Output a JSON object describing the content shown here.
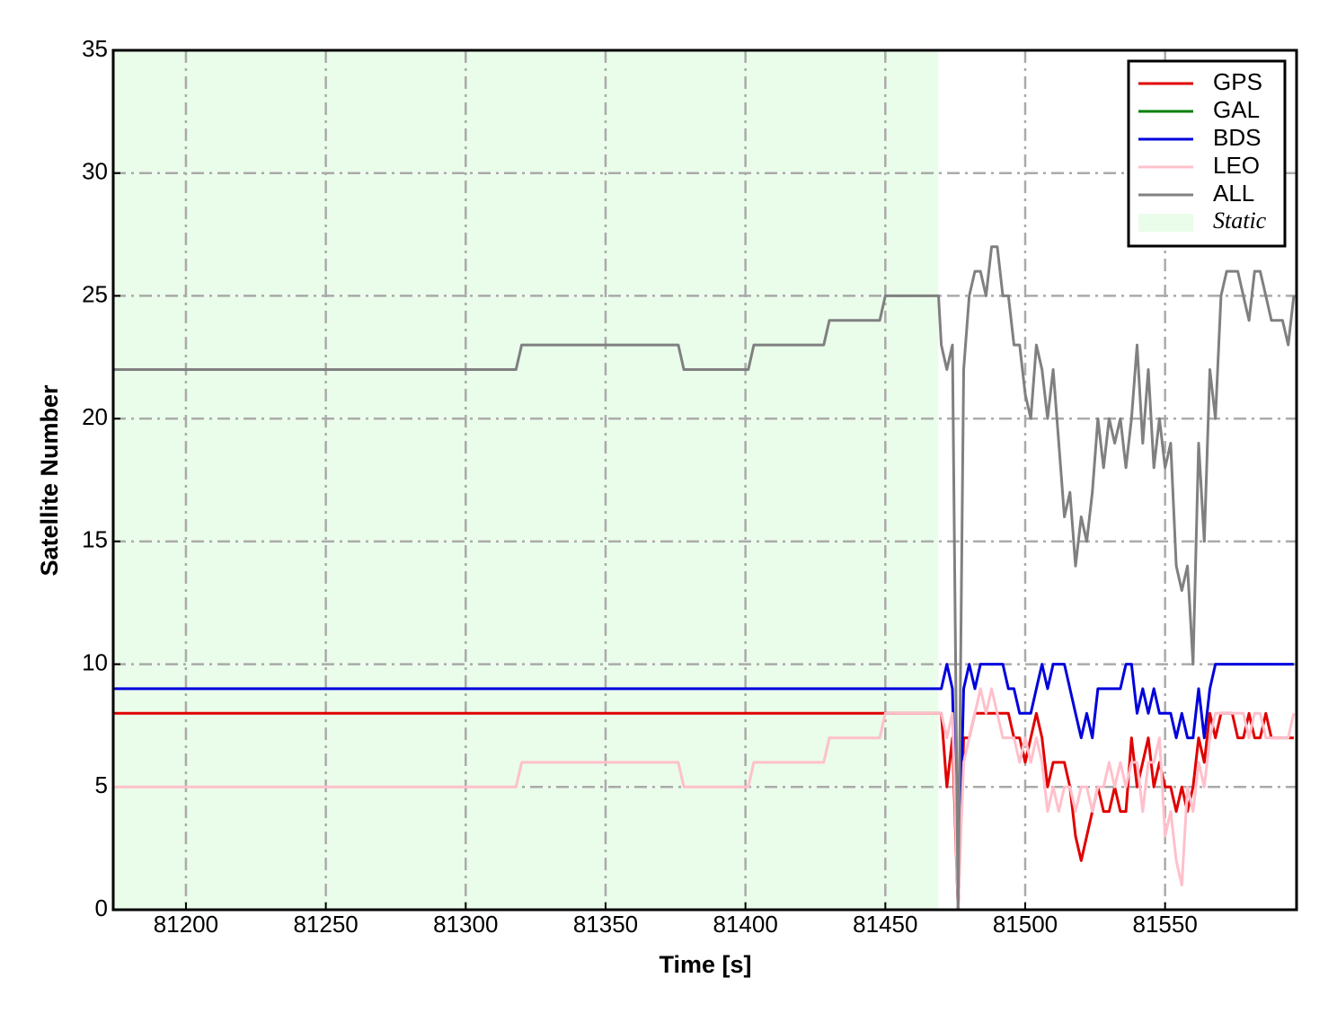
{
  "chart_data": {
    "type": "line",
    "xlabel": "Time [s]",
    "ylabel": "Satellite Number",
    "x": [
      81174,
      81318,
      81320,
      81376,
      81378,
      81401,
      81403,
      81428,
      81430,
      81448,
      81450,
      81469,
      81470,
      81472,
      81474,
      81476,
      81478,
      81480,
      81482,
      81484,
      81486,
      81488,
      81490,
      81492,
      81494,
      81496,
      81498,
      81500,
      81502,
      81504,
      81506,
      81508,
      81510,
      81512,
      81514,
      81516,
      81518,
      81520,
      81522,
      81524,
      81526,
      81528,
      81530,
      81532,
      81534,
      81536,
      81538,
      81540,
      81542,
      81544,
      81546,
      81548,
      81550,
      81552,
      81554,
      81556,
      81558,
      81560,
      81562,
      81564,
      81566,
      81568,
      81570,
      81572,
      81574,
      81576,
      81578,
      81580,
      81582,
      81584,
      81586,
      81588,
      81590,
      81592,
      81594,
      81596
    ],
    "series": [
      {
        "name": "GPS",
        "color": "#e00000",
        "values": [
          8,
          8,
          8,
          8,
          8,
          8,
          8,
          8,
          8,
          8,
          8,
          8,
          8,
          5,
          7,
          0,
          7,
          7,
          8,
          8,
          8,
          8,
          8,
          8,
          8,
          7,
          7,
          6,
          7,
          8,
          7,
          5,
          6,
          6,
          6,
          5,
          3,
          2,
          3,
          4,
          5,
          4,
          4,
          5,
          4,
          4,
          7,
          5,
          6,
          7,
          5,
          6,
          5,
          5,
          4,
          5,
          4,
          5,
          7,
          6,
          8,
          7,
          8,
          8,
          8,
          7,
          7,
          8,
          7,
          7,
          8,
          7,
          7,
          7,
          7,
          7
        ]
      },
      {
        "name": "GAL",
        "color": "#007f00",
        "values": [
          0,
          0,
          0,
          0,
          0,
          0,
          0,
          0,
          0,
          0,
          0,
          0,
          0,
          0,
          0,
          0,
          0,
          0,
          0,
          0,
          0,
          0,
          0,
          0,
          0,
          0,
          0,
          0,
          0,
          0,
          0,
          0,
          0,
          0,
          0,
          0,
          0,
          0,
          0,
          0,
          0,
          0,
          0,
          0,
          0,
          0,
          0,
          0,
          0,
          0,
          0,
          0,
          0,
          0,
          0,
          0,
          0,
          0,
          0,
          0,
          0,
          0,
          0,
          0,
          0,
          0,
          0,
          0,
          0,
          0,
          0,
          0,
          0,
          0,
          0,
          0
        ]
      },
      {
        "name": "BDS",
        "color": "#0000dd",
        "values": [
          9,
          9,
          9,
          9,
          9,
          9,
          9,
          9,
          9,
          9,
          9,
          9,
          9,
          10,
          9,
          0,
          9,
          10,
          9,
          10,
          10,
          10,
          10,
          10,
          9,
          9,
          8,
          8,
          8,
          9,
          10,
          9,
          10,
          10,
          10,
          9,
          8,
          7,
          8,
          7,
          9,
          9,
          9,
          9,
          9,
          10,
          10,
          8,
          9,
          8,
          9,
          8,
          8,
          8,
          7,
          8,
          7,
          7,
          9,
          7,
          9,
          10,
          10,
          10,
          10,
          10,
          10,
          10,
          10,
          10,
          10,
          10,
          10,
          10,
          10,
          10
        ]
      },
      {
        "name": "LEO",
        "color": "#ffc0cb",
        "values": [
          5,
          5,
          6,
          6,
          5,
          5,
          6,
          6,
          7,
          7,
          8,
          8,
          8,
          7,
          8,
          0,
          6,
          7,
          8,
          9,
          8,
          9,
          8,
          7,
          7,
          7,
          6,
          7,
          6,
          7,
          6,
          4,
          5,
          4,
          5,
          5,
          4,
          5,
          5,
          4,
          5,
          5,
          6,
          5,
          6,
          5,
          6,
          6,
          4,
          6,
          6,
          7,
          3,
          4,
          2,
          1,
          5,
          4,
          6,
          5,
          7,
          8,
          8,
          8,
          8,
          8,
          8,
          7,
          8,
          8,
          7,
          7,
          7,
          7,
          7,
          8
        ]
      },
      {
        "name": "ALL",
        "color": "#808080",
        "values": [
          22,
          22,
          23,
          23,
          22,
          22,
          23,
          23,
          24,
          24,
          25,
          25,
          23,
          22,
          23,
          0,
          22,
          25,
          26,
          26,
          25,
          27,
          27,
          25,
          25,
          23,
          23,
          21,
          20,
          23,
          22,
          20,
          22,
          19,
          16,
          17,
          14,
          16,
          15,
          17,
          20,
          18,
          20,
          19,
          20,
          18,
          20,
          23,
          19,
          22,
          18,
          20,
          18,
          19,
          14,
          13,
          14,
          10,
          19,
          15,
          22,
          20,
          25,
          26,
          26,
          26,
          25,
          24,
          26,
          26,
          25,
          24,
          24,
          24,
          23,
          25
        ]
      }
    ],
    "shaded_region": {
      "label": "Static",
      "xrange": [
        81174,
        81469
      ],
      "color": "#eafcea"
    },
    "xlim": [
      81174,
      81597
    ],
    "ylim": [
      0,
      35
    ],
    "xticks": [
      81200,
      81250,
      81300,
      81350,
      81400,
      81450,
      81500,
      81550
    ],
    "yticks": [
      0,
      5,
      10,
      15,
      20,
      25,
      30,
      35
    ],
    "grid": true,
    "legend": "upper right"
  }
}
